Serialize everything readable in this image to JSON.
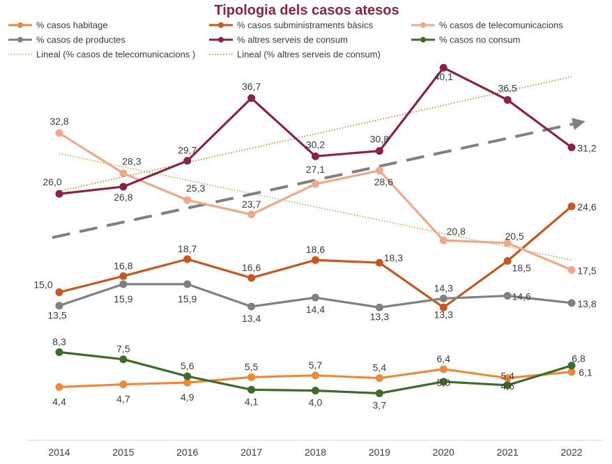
{
  "chart_data": {
    "type": "line",
    "title": "Tipologia dels casos atesos",
    "categories": [
      "2014",
      "2015",
      "2016",
      "2017",
      "2018",
      "2019",
      "2020",
      "2021",
      "2022"
    ],
    "series": [
      {
        "name": "% casos habitage",
        "color": "#f0883a",
        "values": [
          4.4,
          4.7,
          4.9,
          5.5,
          5.7,
          5.4,
          6.4,
          5.4,
          6.1
        ],
        "labels": [
          "4,4",
          "4,7",
          "4,9",
          "5,5",
          "5,7",
          "5,4",
          "6,4",
          "5,4",
          "6,1"
        ]
      },
      {
        "name": "% casos subministraments bàsics",
        "color": "#c8571f",
        "values": [
          15.0,
          16.8,
          18.7,
          16.6,
          18.6,
          18.3,
          13.3,
          18.5,
          24.6
        ],
        "labels": [
          "15,0",
          "16,8",
          "18,7",
          "16,6",
          "18,6",
          "18,3",
          "13,3",
          "18,5",
          "24,6"
        ]
      },
      {
        "name": "% casos de telecomunicacions",
        "color": "#f0a88a",
        "values": [
          32.8,
          28.3,
          25.3,
          23.7,
          27.1,
          28.6,
          20.8,
          20.5,
          17.5
        ],
        "labels": [
          "32,8",
          "28,3",
          "25,3",
          "23,7",
          "27,1",
          "28,6",
          "20,8",
          "20,5",
          "17,5"
        ]
      },
      {
        "name": "% casos de productes",
        "color": "#808080",
        "values": [
          13.5,
          15.9,
          15.9,
          13.4,
          14.4,
          13.3,
          14.3,
          14.6,
          13.8
        ],
        "labels": [
          "13,5",
          "15,9",
          "15,9",
          "13,4",
          "14,4",
          "13,3",
          "14,3",
          "14,6",
          "13,8"
        ]
      },
      {
        "name": "% altres serveis de consum",
        "color": "#8b2240",
        "values": [
          26.0,
          26.8,
          29.7,
          36.7,
          30.2,
          30.8,
          40.1,
          36.5,
          31.2
        ],
        "labels": [
          "26,0",
          "26,8",
          "29,7",
          "36,7",
          "30,2",
          "30,8",
          "40,1",
          "36,5",
          "31,2"
        ]
      },
      {
        "name": "% casos no consum",
        "color": "#3d6b2a",
        "values": [
          8.3,
          7.5,
          5.6,
          4.1,
          4.0,
          3.7,
          5.0,
          4.6,
          6.8
        ],
        "labels": [
          "8,3",
          "7,5",
          "5,6",
          "4,1",
          "4,0",
          "3,7",
          "5,0",
          "4,6",
          "6,8"
        ]
      }
    ],
    "trendlines": [
      {
        "name": "Lineal (% casos de telecomunicacions )",
        "color": "#8cc04a",
        "style": "dotted",
        "values": [
          30.5,
          18.6
        ]
      },
      {
        "name": "Lineal (% altres serveis de consum)",
        "color": "#b8862a",
        "style": "dotted",
        "values": [
          26.3,
          39.1
        ]
      }
    ],
    "ylim": [
      0,
      43
    ],
    "grid": false,
    "legend_position": "top"
  }
}
